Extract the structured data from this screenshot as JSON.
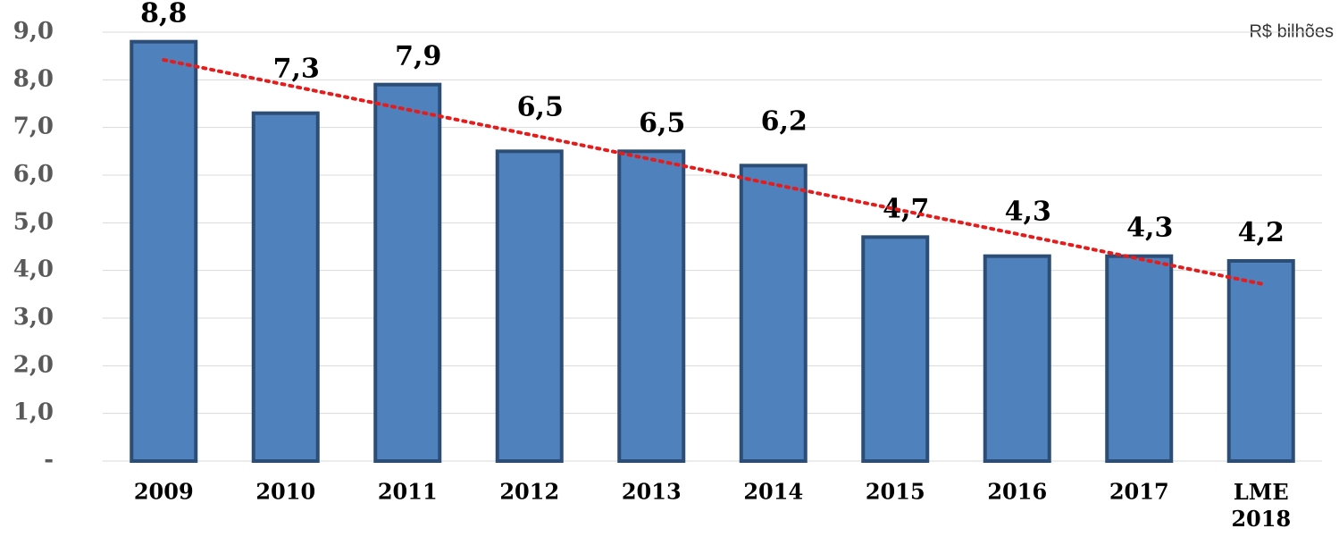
{
  "chart_data": {
    "type": "bar",
    "annotation": "R$ bilhões",
    "categories": [
      "2009",
      "2010",
      "2011",
      "2012",
      "2013",
      "2014",
      "2015",
      "2016",
      "2017",
      "LME 2018"
    ],
    "values": [
      8.8,
      7.3,
      7.9,
      6.5,
      6.5,
      6.2,
      4.7,
      4.3,
      4.3,
      4.2
    ],
    "value_labels": [
      "8,8",
      "7,3",
      "7,9",
      "6,5",
      "6,5",
      "6,2",
      "4,7",
      "4,3",
      "4,3",
      "4,2"
    ],
    "color": "#4f81bd",
    "ylim": [
      0,
      9
    ],
    "yticks": [
      {
        "value": 0,
        "label": "-"
      },
      {
        "value": 1,
        "label": "1,0"
      },
      {
        "value": 2,
        "label": "2,0"
      },
      {
        "value": 3,
        "label": "3,0"
      },
      {
        "value": 4,
        "label": "4,0"
      },
      {
        "value": 5,
        "label": "5,0"
      },
      {
        "value": 6,
        "label": "6,0"
      },
      {
        "value": 7,
        "label": "7,0"
      },
      {
        "value": 8,
        "label": "8,0"
      },
      {
        "value": 9,
        "label": "9,0"
      }
    ],
    "grid": true,
    "trendline": {
      "type": "linear",
      "color": "#e41c1c"
    }
  }
}
